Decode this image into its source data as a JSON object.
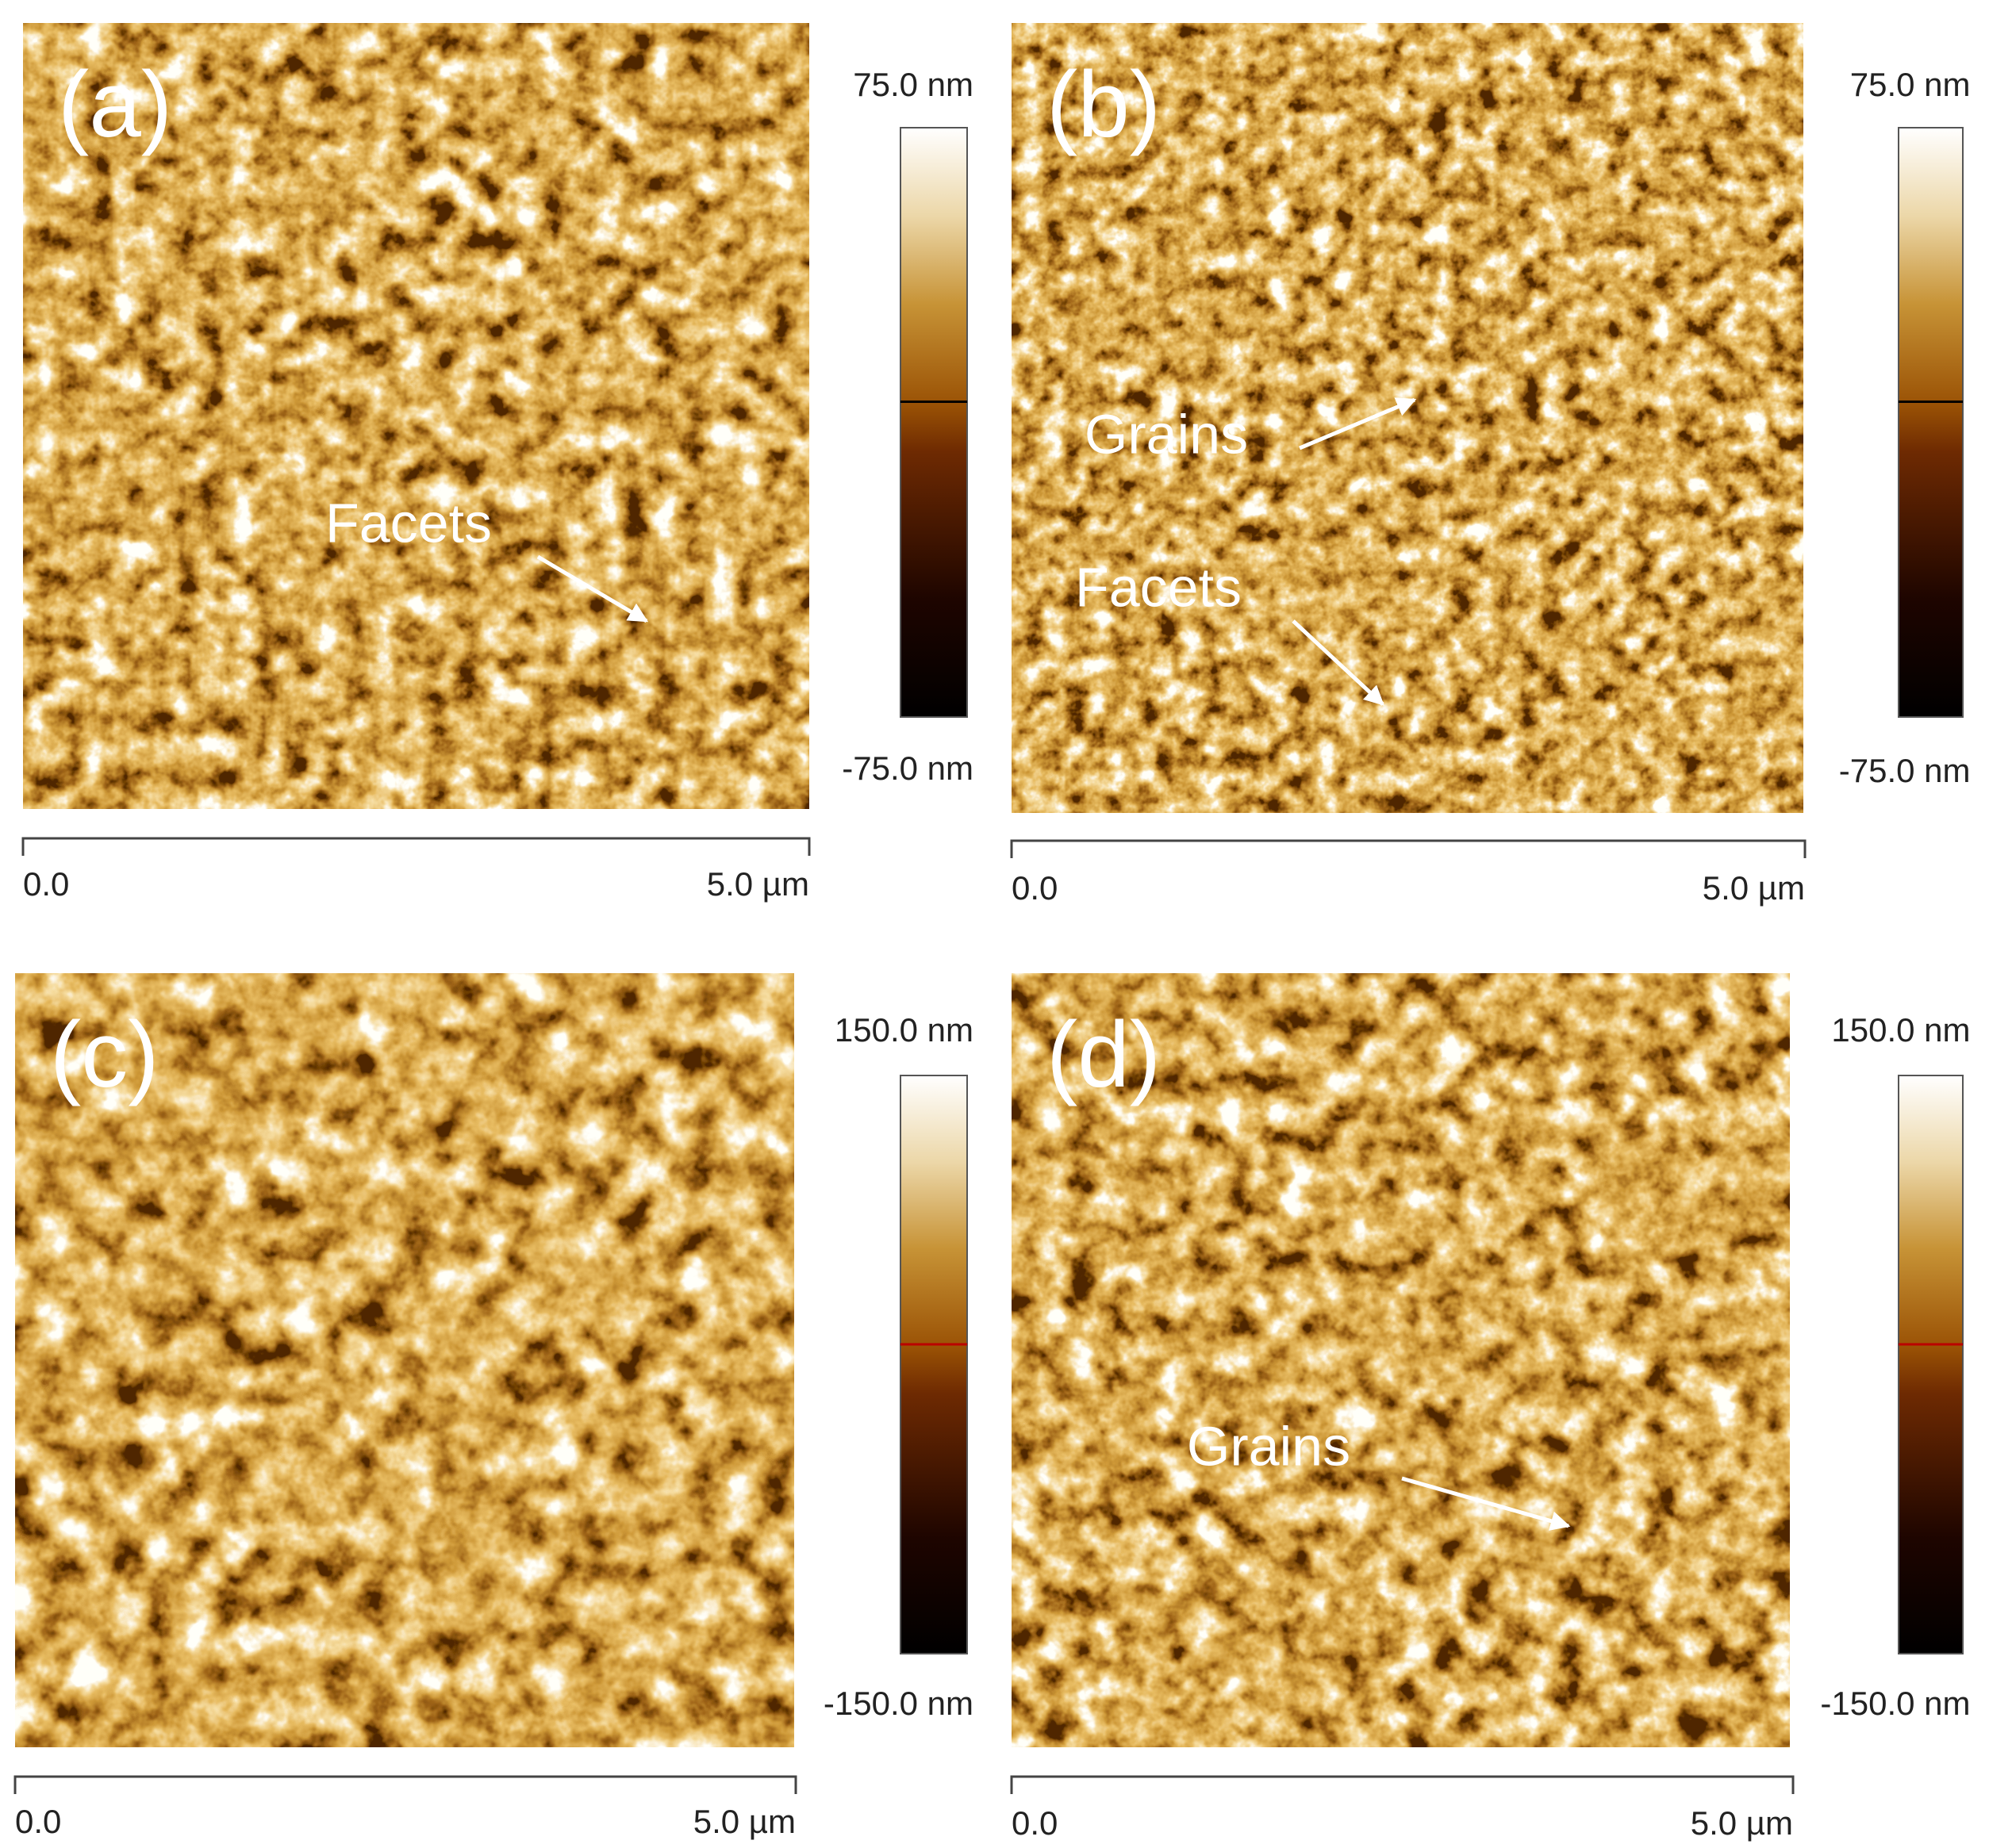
{
  "panels": [
    {
      "label": "(a)",
      "colorbar": {
        "max": "75.0 nm",
        "min": "-75.0 nm"
      },
      "scalebar": {
        "start": "0.0",
        "end": "5.0 µm"
      },
      "annotations": [
        {
          "text": "Facets"
        }
      ]
    },
    {
      "label": "(b)",
      "colorbar": {
        "max": "75.0 nm",
        "min": "-75.0 nm"
      },
      "scalebar": {
        "start": "0.0",
        "end": "5.0 µm"
      },
      "annotations": [
        {
          "text": "Grains"
        },
        {
          "text": "Facets"
        }
      ]
    },
    {
      "label": "(c)",
      "colorbar": {
        "max": "150.0 nm",
        "min": "-150.0 nm"
      },
      "scalebar": {
        "start": "0.0",
        "end": "5.0 µm"
      },
      "annotations": []
    },
    {
      "label": "(d)",
      "colorbar": {
        "max": "150.0 nm",
        "min": "-150.0 nm"
      },
      "scalebar": {
        "start": "0.0",
        "end": "5.0 µm"
      },
      "annotations": [
        {
          "text": "Grains"
        }
      ]
    }
  ]
}
